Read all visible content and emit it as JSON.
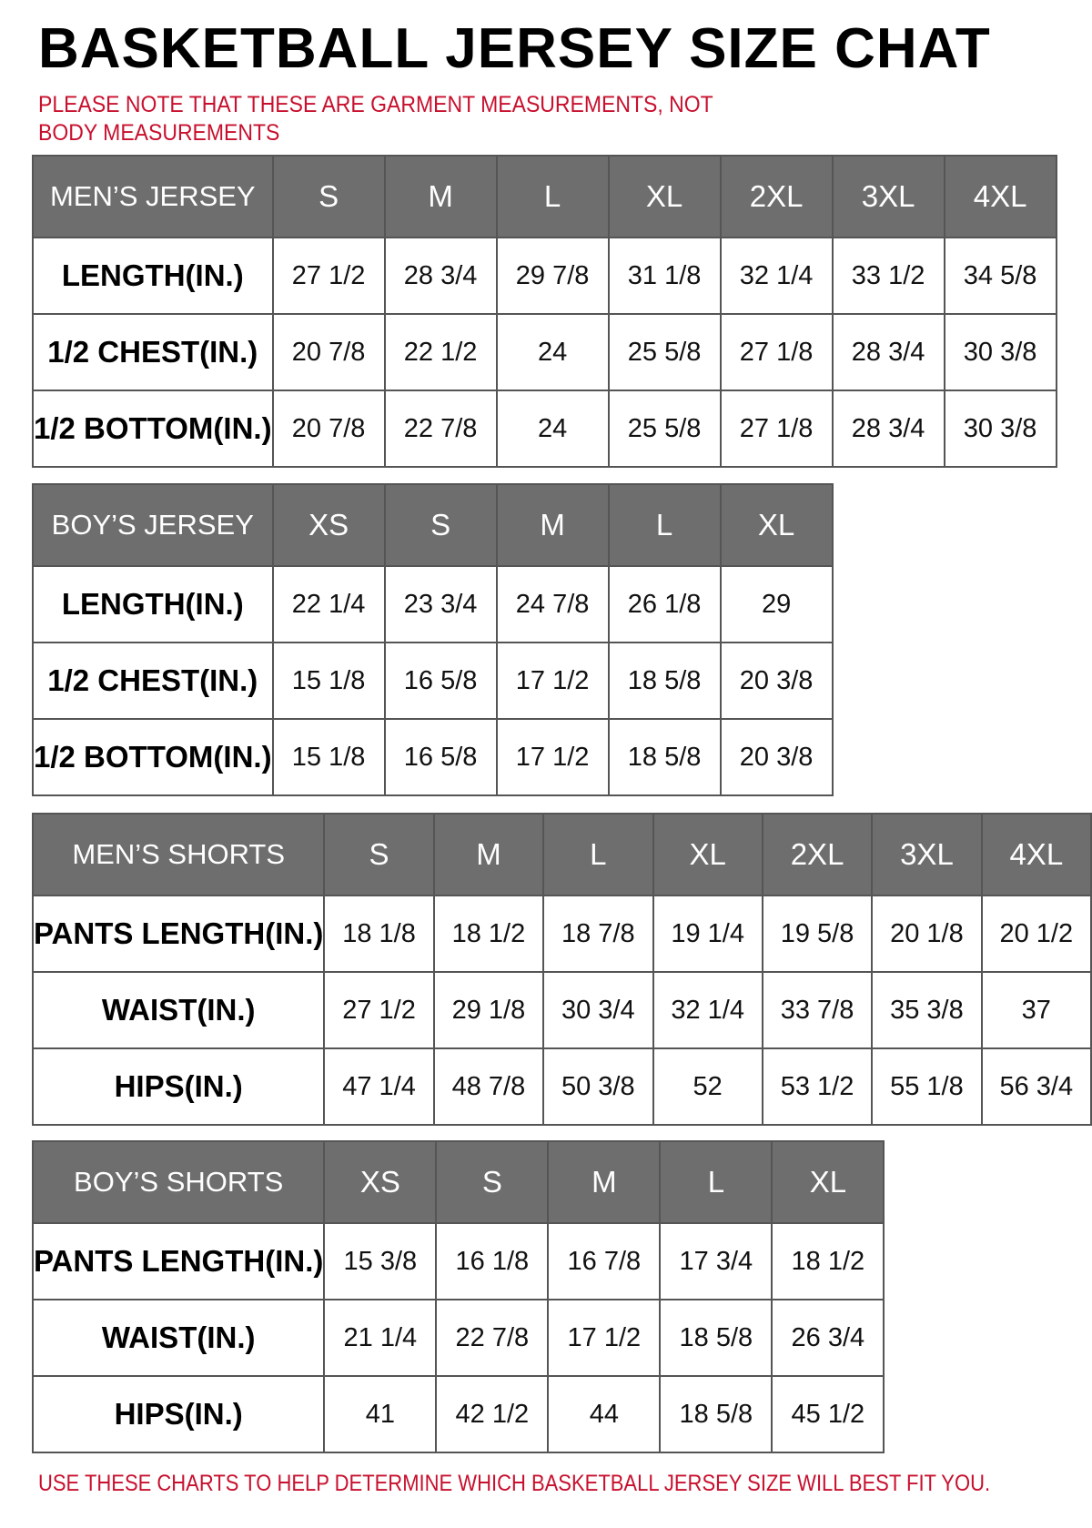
{
  "title": "BASKETBALL JERSEY SIZE CHAT",
  "note": "PLEASE NOTE THAT THESE ARE GARMENT MEASUREMENTS, NOT BODY MEASUREMENTS",
  "footer": "USE THESE CHARTS TO HELP DETERMINE WHICH BASKETBALL JERSEY SIZE WILL BEST FIT YOU.",
  "colors": {
    "header_bg": "#6e6e6e",
    "note_red": "#c8102e"
  },
  "tables": [
    {
      "name": "mens-jersey",
      "header": "MEN’S JERSEY",
      "sizes": [
        "S",
        "M",
        "L",
        "XL",
        "2XL",
        "3XL",
        "4XL"
      ],
      "rows": [
        {
          "label": "LENGTH(IN.)",
          "values": [
            "27 1/2",
            "28 3/4",
            "29 7/8",
            "31 1/8",
            "32 1/4",
            "33 1/2",
            "34 5/8"
          ]
        },
        {
          "label": "1/2 CHEST(IN.)",
          "values": [
            "20 7/8",
            "22 1/2",
            "24",
            "25 5/8",
            "27 1/8",
            "28 3/4",
            "30 3/8"
          ]
        },
        {
          "label": "1/2 BOTTOM(IN.)",
          "values": [
            "20 7/8",
            "22 7/8",
            "24",
            "25 5/8",
            "27 1/8",
            "28 3/4",
            "30 3/8"
          ]
        }
      ]
    },
    {
      "name": "boys-jersey",
      "header": "BOY’S JERSEY",
      "sizes": [
        "XS",
        "S",
        "M",
        "L",
        "XL"
      ],
      "rows": [
        {
          "label": "LENGTH(IN.)",
          "values": [
            "22 1/4",
            "23 3/4",
            "24 7/8",
            "26 1/8",
            "29"
          ]
        },
        {
          "label": "1/2 CHEST(IN.)",
          "values": [
            "15 1/8",
            "16 5/8",
            "17 1/2",
            "18 5/8",
            "20 3/8"
          ]
        },
        {
          "label": "1/2 BOTTOM(IN.)",
          "values": [
            "15 1/8",
            "16 5/8",
            "17 1/2",
            "18 5/8",
            "20 3/8"
          ]
        }
      ]
    },
    {
      "name": "mens-shorts",
      "header": "MEN’S SHORTS",
      "sizes": [
        "S",
        "M",
        "L",
        "XL",
        "2XL",
        "3XL",
        "4XL"
      ],
      "rows": [
        {
          "label": "PANTS LENGTH(IN.)",
          "values": [
            "18 1/8",
            "18 1/2",
            "18 7/8",
            "19 1/4",
            "19 5/8",
            "20 1/8",
            "20 1/2"
          ]
        },
        {
          "label": "WAIST(IN.)",
          "values": [
            "27 1/2",
            "29 1/8",
            "30 3/4",
            "32 1/4",
            "33 7/8",
            "35 3/8",
            "37"
          ]
        },
        {
          "label": "HIPS(IN.)",
          "values": [
            "47 1/4",
            "48 7/8",
            "50 3/8",
            "52",
            "53 1/2",
            "55 1/8",
            "56 3/4"
          ]
        }
      ]
    },
    {
      "name": "boys-shorts",
      "header": "BOY’S SHORTS",
      "sizes": [
        "XS",
        "S",
        "M",
        "L",
        "XL"
      ],
      "rows": [
        {
          "label": "PANTS LENGTH(IN.)",
          "values": [
            "15 3/8",
            "16 1/8",
            "16 7/8",
            "17 3/4",
            "18 1/2"
          ]
        },
        {
          "label": "WAIST(IN.)",
          "values": [
            "21 1/4",
            "22 7/8",
            "17 1/2",
            "18 5/8",
            "26 3/4"
          ]
        },
        {
          "label": "HIPS(IN.)",
          "values": [
            "41",
            "42 1/2",
            "44",
            "18 5/8",
            "45 1/2"
          ]
        }
      ]
    }
  ]
}
